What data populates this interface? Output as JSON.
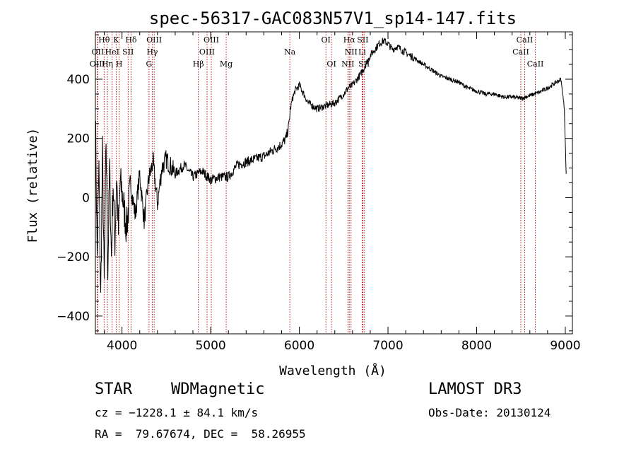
{
  "chart_data": {
    "type": "line",
    "title": "spec-56317-GAC083N57V1_sp14-147.fits",
    "xlabel": "Wavelength (Å)",
    "ylabel": "Flux (relative)",
    "xlim": [
      3700,
      9080
    ],
    "ylim": [
      -460,
      560
    ],
    "xticks": [
      4000,
      5000,
      6000,
      7000,
      8000,
      9000
    ],
    "xtick_labels": [
      "4000",
      "5000",
      "6000",
      "7000",
      "8000",
      "9000"
    ],
    "yticks": [
      -400,
      -200,
      0,
      200,
      400
    ],
    "ytick_labels": [
      "−400",
      "−200",
      "0",
      "200",
      "400"
    ],
    "grid": false,
    "series": [
      {
        "name": "flux",
        "x": [
          3700,
          3720,
          3740,
          3760,
          3780,
          3800,
          3820,
          3840,
          3860,
          3880,
          3900,
          3920,
          3940,
          3960,
          3980,
          4000,
          4050,
          4100,
          4150,
          4200,
          4250,
          4300,
          4350,
          4400,
          4450,
          4500,
          4600,
          4700,
          4800,
          4900,
          5000,
          5100,
          5200,
          5300,
          5400,
          5500,
          5600,
          5700,
          5800,
          5850,
          5880,
          5900,
          5920,
          5950,
          6000,
          6050,
          6100,
          6200,
          6300,
          6400,
          6500,
          6550,
          6600,
          6700,
          6800,
          6850,
          6900,
          6950,
          7000,
          7050,
          7100,
          7150,
          7200,
          7300,
          7400,
          7500,
          7600,
          7700,
          7800,
          7900,
          8000,
          8100,
          8200,
          8300,
          8400,
          8500,
          8600,
          8700,
          8800,
          8850,
          8900,
          8950,
          8970,
          8990,
          9000,
          9010
        ],
        "y": [
          300,
          -200,
          100,
          -350,
          150,
          -300,
          200,
          -250,
          100,
          -200,
          50,
          -150,
          80,
          -120,
          50,
          20,
          -100,
          40,
          -60,
          80,
          -80,
          60,
          120,
          -20,
          100,
          130,
          80,
          110,
          70,
          90,
          60,
          70,
          70,
          110,
          120,
          130,
          140,
          160,
          180,
          200,
          240,
          300,
          330,
          360,
          380,
          350,
          320,
          300,
          310,
          320,
          350,
          370,
          380,
          420,
          480,
          500,
          520,
          530,
          520,
          500,
          510,
          500,
          490,
          470,
          450,
          430,
          410,
          400,
          390,
          370,
          360,
          350,
          350,
          340,
          340,
          335,
          345,
          355,
          370,
          380,
          390,
          400,
          350,
          300,
          180,
          80
        ]
      }
    ],
    "lines": [
      {
        "name": "Hθ",
        "wave": 3798,
        "row": 0
      },
      {
        "name": "OII",
        "wave": 3727,
        "row": 1
      },
      {
        "name": "OIII",
        "wave": 3722,
        "row": 2
      },
      {
        "name": "K",
        "wave": 3934,
        "row": 0
      },
      {
        "name": "HeI",
        "wave": 3889,
        "row": 1
      },
      {
        "name": "Hη",
        "wave": 3835,
        "row": 2
      },
      {
        "name": "Hδ",
        "wave": 4102,
        "row": 0
      },
      {
        "name": "SII",
        "wave": 4069,
        "row": 1
      },
      {
        "name": "H",
        "wave": 3968,
        "row": 2
      },
      {
        "name": "OIII",
        "wave": 4363,
        "row": 0
      },
      {
        "name": "Hγ",
        "wave": 4341,
        "row": 1
      },
      {
        "name": "G",
        "wave": 4305,
        "row": 2
      },
      {
        "name": "OIII",
        "wave": 5007,
        "row": 0
      },
      {
        "name": "OIII",
        "wave": 4959,
        "row": 1
      },
      {
        "name": "Hβ",
        "wave": 4861,
        "row": 2
      },
      {
        "name": "Mg",
        "wave": 5175,
        "row": 2
      },
      {
        "name": "Na",
        "wave": 5893,
        "row": 1
      },
      {
        "name": "OI",
        "wave": 6300,
        "row": 0
      },
      {
        "name": "OI",
        "wave": 6363,
        "row": 2
      },
      {
        "name": "Hα",
        "wave": 6563,
        "row": 0
      },
      {
        "name": "NII",
        "wave": 6583,
        "row": 1
      },
      {
        "name": "NII",
        "wave": 6548,
        "row": 2
      },
      {
        "name": "SII",
        "wave": 6716,
        "row": 0
      },
      {
        "name": "Li",
        "wave": 6708,
        "row": 1
      },
      {
        "name": "SII",
        "wave": 6731,
        "row": 2
      },
      {
        "name": "CaII",
        "wave": 8542,
        "row": 0
      },
      {
        "name": "CaII",
        "wave": 8498,
        "row": 1
      },
      {
        "name": "CaII",
        "wave": 8662,
        "row": 2
      }
    ]
  },
  "info": {
    "object_type": "STAR",
    "subclass": "WDMagnetic",
    "survey": "LAMOST DR3",
    "cz": "cz = −1228.1 ± 84.1 km/s",
    "obs_date": "Obs-Date: 20130124",
    "radec": "RA =  79.67674, DEC =  58.26955"
  }
}
